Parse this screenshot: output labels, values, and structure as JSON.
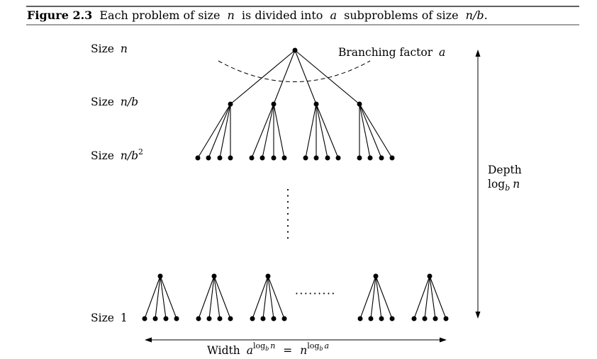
{
  "caption": {
    "figure_label": "Figure 2.3",
    "text_before_n": "Each problem of size",
    "var_n": "n",
    "text_mid": "is divided into",
    "var_a": "a",
    "text_after_a": "subproblems of size",
    "var_nb": "n/b",
    "end_punct": "."
  },
  "levels": [
    {
      "prefix": "Size",
      "var": "n",
      "sup": ""
    },
    {
      "prefix": "Size",
      "var": "n/b",
      "sup": ""
    },
    {
      "prefix": "Size",
      "var": "n/b",
      "sup": "2"
    },
    {
      "prefix": "Size",
      "var": "",
      "sup": "",
      "value": "1"
    }
  ],
  "branching": {
    "prefix": "Branching factor",
    "var": "a"
  },
  "depth": {
    "label": "Depth",
    "func": "log",
    "sub": "b",
    "var": "n"
  },
  "width": {
    "prefix": "Width",
    "base": "a",
    "exp_func": "log",
    "exp_sub": "b",
    "exp_var": "n",
    "equals": "=",
    "rhs_base": "n",
    "rhs_exp_func": "log",
    "rhs_exp_sub": "b",
    "rhs_exp_var": "a"
  },
  "ellipsis_horizontal": "·········",
  "ellipsis_vertical": "·"
}
